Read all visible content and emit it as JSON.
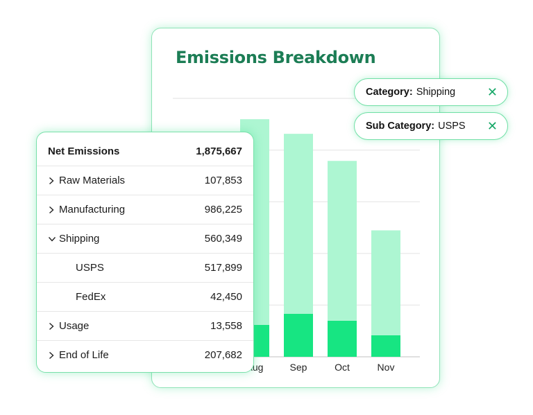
{
  "chart": {
    "title": "Emissions Breakdown"
  },
  "chart_data": {
    "type": "bar",
    "stacked": true,
    "categories": [
      "Aug",
      "Sep",
      "Oct",
      "Nov"
    ],
    "series": [
      {
        "name": "",
        "color": "#17e582",
        "values": [
          46,
          62,
          52,
          31
        ]
      },
      {
        "name": "",
        "color": "#adf6d2",
        "values": [
          296,
          259,
          230,
          151
        ]
      }
    ],
    "ylim": [
      0,
      372
    ],
    "grid": true,
    "gridlines": [
      0,
      74.4,
      148.8,
      223.2,
      297.6,
      372
    ],
    "legend": "none"
  },
  "filters": [
    {
      "key": "Category:",
      "value": "Shipping",
      "close": "✕"
    },
    {
      "key": "Sub Category:",
      "value": "USPS",
      "close": "✕"
    }
  ],
  "table": {
    "header": {
      "label": "Net Emissions",
      "value": "1,875,667"
    },
    "rows": [
      {
        "label": "Raw Materials",
        "value": "107,853",
        "caret": "collapsed"
      },
      {
        "label": "Manufacturing",
        "value": "986,225",
        "caret": "collapsed"
      },
      {
        "label": "Shipping",
        "value": "560,349",
        "caret": "expanded"
      },
      {
        "label": "USPS",
        "value": "517,899",
        "caret": "none"
      },
      {
        "label": "FedEx",
        "value": "42,450",
        "caret": "none"
      },
      {
        "label": "Usage",
        "value": "13,558",
        "caret": "collapsed"
      },
      {
        "label": "End of Life",
        "value": "207,682",
        "caret": "collapsed"
      }
    ]
  }
}
